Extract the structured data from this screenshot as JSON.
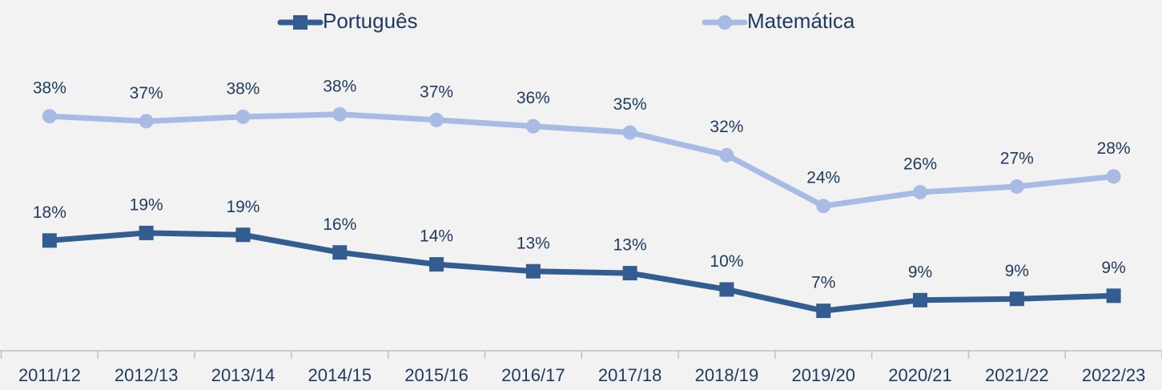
{
  "chart_data": {
    "type": "line",
    "categories": [
      "2011/12",
      "2012/13",
      "2013/14",
      "2014/15",
      "2015/16",
      "2016/17",
      "2017/18",
      "2018/19",
      "2019/20",
      "2020/21",
      "2021/22",
      "2022/23"
    ],
    "series": [
      {
        "name": "Português",
        "color": "#335c90",
        "marker": "square",
        "values": [
          18.2,
          19.4,
          19.1,
          16.3,
          14.4,
          13.3,
          13.0,
          10.4,
          7.0,
          8.7,
          8.9,
          9.4
        ],
        "value_labels": [
          "18%",
          "19%",
          "19%",
          "16%",
          "14%",
          "13%",
          "13%",
          "10%",
          "7%",
          "9%",
          "9%",
          "9%"
        ]
      },
      {
        "name": "Matemática",
        "color": "#a8bbe4",
        "marker": "circle",
        "values": [
          38.0,
          37.2,
          37.9,
          38.3,
          37.4,
          36.4,
          35.4,
          31.8,
          23.7,
          25.9,
          26.8,
          28.4
        ],
        "value_labels": [
          "38%",
          "37%",
          "38%",
          "38%",
          "37%",
          "36%",
          "35%",
          "32%",
          "24%",
          "26%",
          "27%",
          "28%"
        ]
      }
    ],
    "ylim": [
      0,
      50
    ],
    "legend": "top"
  }
}
